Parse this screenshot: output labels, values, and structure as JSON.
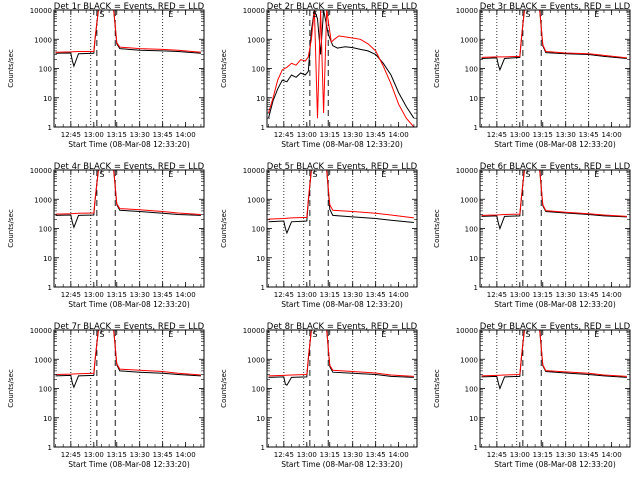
{
  "chart_data": [
    {
      "type": "line",
      "title": "Det 1r BLACK = Events, RED = LLD",
      "xlabel": "Start Time (08-Mar-08 12:33:20)",
      "ylabel": "Counts/sec",
      "yscale": "log",
      "ylim": [
        1,
        10000
      ],
      "xlim": [
        "12:34",
        "14:12"
      ],
      "x_tick_labels": [
        "12:45",
        "13:00",
        "13:15",
        "13:30",
        "13:45",
        "14:00"
      ],
      "y_tick_labels": [
        "1",
        "10",
        "100",
        "1000",
        "10000"
      ],
      "markers": [
        "S",
        "E"
      ],
      "series": [
        {
          "color": "#000000",
          "x": [
            "12:35",
            "12:45",
            "12:46",
            "12:47",
            "12:50",
            "13:00",
            "13:01",
            "13:03",
            "13:13",
            "13:15",
            "13:17",
            "13:30",
            "13:45",
            "13:55",
            "14:10"
          ],
          "y": [
            330,
            340,
            180,
            120,
            320,
            330,
            1200,
            10000,
            10000,
            700,
            480,
            420,
            400,
            380,
            330
          ]
        },
        {
          "color": "#ff0000",
          "x": [
            "12:35",
            "12:45",
            "12:50",
            "13:00",
            "13:01",
            "13:03",
            "13:13",
            "13:15",
            "13:17",
            "13:30",
            "13:45",
            "13:55",
            "14:10"
          ],
          "y": [
            360,
            370,
            380,
            380,
            1300,
            10000,
            10000,
            760,
            540,
            480,
            450,
            420,
            360
          ]
        }
      ]
    },
    {
      "type": "line",
      "title": "Det 2r BLACK = Events, RED = LLD",
      "xlabel": "Start Time (08-Mar-08 12:33:20)",
      "ylabel": "Counts/sec",
      "yscale": "log",
      "ylim": [
        1,
        10000
      ],
      "xlim": [
        "12:34",
        "14:12"
      ],
      "x_tick_labels": [
        "12:45",
        "13:00",
        "13:15",
        "13:30",
        "13:45",
        "14:00"
      ],
      "y_tick_labels": [
        "1",
        "10",
        "100",
        "1000",
        "10000"
      ],
      "markers": [
        "S",
        "E"
      ],
      "series": [
        {
          "color": "#000000",
          "x": [
            "12:35",
            "12:38",
            "12:41",
            "12:44",
            "12:47",
            "12:50",
            "12:53",
            "12:56",
            "12:59",
            "13:01",
            "13:03",
            "13:05",
            "13:07",
            "13:09",
            "13:11",
            "13:14",
            "13:17",
            "13:20",
            "13:25",
            "13:30",
            "13:35",
            "13:40",
            "13:45",
            "13:50",
            "13:55",
            "14:00",
            "14:05",
            "14:10"
          ],
          "y": [
            2,
            8,
            20,
            40,
            35,
            60,
            50,
            70,
            60,
            80,
            2000,
            10000,
            5000,
            300,
            10000,
            1500,
            600,
            500,
            550,
            520,
            450,
            400,
            300,
            150,
            60,
            15,
            5,
            2
          ]
        },
        {
          "color": "#ff0000",
          "x": [
            "12:35",
            "12:38",
            "12:41",
            "12:44",
            "12:47",
            "12:50",
            "12:53",
            "12:56",
            "12:59",
            "13:01",
            "13:03",
            "13:05",
            "13:07",
            "13:09",
            "13:11",
            "13:13",
            "13:16",
            "13:18",
            "13:21",
            "13:25",
            "13:30",
            "13:35",
            "13:40",
            "13:45",
            "13:50",
            "13:55",
            "14:00",
            "14:05",
            "14:10"
          ],
          "y": [
            3,
            10,
            40,
            90,
            110,
            150,
            130,
            200,
            180,
            250,
            1000,
            10000,
            2,
            10000,
            3,
            10000,
            800,
            1000,
            1300,
            1200,
            1100,
            1000,
            700,
            400,
            120,
            30,
            6,
            2,
            1
          ]
        }
      ]
    },
    {
      "type": "line",
      "title": "Det 3r BLACK = Events, RED = LLD",
      "xlabel": "Start Time (08-Mar-08 12:33:20)",
      "ylabel": "Counts/sec",
      "yscale": "log",
      "ylim": [
        1,
        10000
      ],
      "xlim": [
        "12:34",
        "14:12"
      ],
      "x_tick_labels": [
        "12:45",
        "13:00",
        "13:15",
        "13:30",
        "13:45",
        "14:00"
      ],
      "y_tick_labels": [
        "1",
        "10",
        "100",
        "1000",
        "10000"
      ],
      "markers": [
        "S",
        "E"
      ],
      "series": [
        {
          "color": "#000000",
          "x": [
            "12:35",
            "12:45",
            "12:46",
            "12:47",
            "12:50",
            "13:00",
            "13:01",
            "13:03",
            "13:13",
            "13:15",
            "13:17",
            "13:30",
            "13:45",
            "13:55",
            "14:10"
          ],
          "y": [
            220,
            230,
            130,
            90,
            220,
            240,
            900,
            10000,
            10000,
            600,
            350,
            320,
            300,
            260,
            220
          ]
        },
        {
          "color": "#ff0000",
          "x": [
            "12:35",
            "12:45",
            "12:50",
            "13:00",
            "13:01",
            "13:03",
            "13:13",
            "13:15",
            "13:17",
            "13:30",
            "13:45",
            "13:55",
            "14:10"
          ],
          "y": [
            240,
            250,
            250,
            260,
            1000,
            10000,
            10000,
            650,
            380,
            340,
            320,
            280,
            230
          ]
        }
      ]
    },
    {
      "type": "line",
      "title": "Det 4r BLACK = Events, RED = LLD",
      "xlabel": "Start Time (08-Mar-08 12:33:20)",
      "ylabel": "Counts/sec",
      "yscale": "log",
      "ylim": [
        1,
        10000
      ],
      "xlim": [
        "12:34",
        "14:12"
      ],
      "x_tick_labels": [
        "12:45",
        "13:00",
        "13:15",
        "13:30",
        "13:45",
        "14:00"
      ],
      "y_tick_labels": [
        "1",
        "10",
        "100",
        "1000",
        "10000"
      ],
      "markers": [
        "S",
        "E"
      ],
      "series": [
        {
          "color": "#000000",
          "x": [
            "12:35",
            "12:45",
            "12:46",
            "12:47",
            "12:50",
            "13:00",
            "13:01",
            "13:03",
            "13:13",
            "13:15",
            "13:17",
            "13:30",
            "13:45",
            "13:55",
            "14:10"
          ],
          "y": [
            280,
            290,
            160,
            110,
            280,
            290,
            1100,
            10000,
            10000,
            650,
            420,
            380,
            330,
            300,
            280
          ]
        },
        {
          "color": "#ff0000",
          "x": [
            "12:35",
            "12:45",
            "12:50",
            "13:00",
            "13:01",
            "13:03",
            "13:13",
            "13:15",
            "13:17",
            "13:30",
            "13:45",
            "13:55",
            "14:10"
          ],
          "y": [
            310,
            320,
            330,
            340,
            1200,
            10000,
            10000,
            700,
            480,
            440,
            380,
            340,
            300
          ]
        }
      ]
    },
    {
      "type": "line",
      "title": "Det 5r BLACK = Events, RED = LLD",
      "xlabel": "Start Time (08-Mar-08 12:33:20)",
      "ylabel": "Counts/sec",
      "yscale": "log",
      "ylim": [
        1,
        10000
      ],
      "xlim": [
        "12:34",
        "14:12"
      ],
      "x_tick_labels": [
        "12:45",
        "13:00",
        "13:15",
        "13:30",
        "13:45",
        "14:00"
      ],
      "y_tick_labels": [
        "1",
        "10",
        "100",
        "1000",
        "10000"
      ],
      "markers": [
        "S",
        "E"
      ],
      "series": [
        {
          "color": "#000000",
          "x": [
            "12:35",
            "12:45",
            "12:46",
            "12:47",
            "12:50",
            "13:00",
            "13:01",
            "13:03",
            "13:13",
            "13:15",
            "13:17",
            "13:30",
            "13:45",
            "13:55",
            "14:10"
          ],
          "y": [
            170,
            180,
            100,
            70,
            170,
            180,
            800,
            10000,
            10000,
            450,
            280,
            250,
            220,
            190,
            160
          ]
        },
        {
          "color": "#ff0000",
          "x": [
            "12:35",
            "12:45",
            "12:50",
            "13:00",
            "13:01",
            "13:03",
            "13:13",
            "13:15",
            "13:17",
            "13:30",
            "13:45",
            "13:55",
            "14:10"
          ],
          "y": [
            210,
            220,
            230,
            240,
            950,
            10000,
            10000,
            650,
            420,
            380,
            330,
            290,
            230
          ]
        }
      ]
    },
    {
      "type": "line",
      "title": "Det 6r BLACK = Events, RED = LLD",
      "xlabel": "Start Time (08-Mar-08 12:33:20)",
      "ylabel": "Counts/sec",
      "yscale": "log",
      "ylim": [
        1,
        10000
      ],
      "xlim": [
        "12:34",
        "14:12"
      ],
      "x_tick_labels": [
        "12:45",
        "13:00",
        "13:15",
        "13:30",
        "13:45",
        "14:00"
      ],
      "y_tick_labels": [
        "1",
        "10",
        "100",
        "1000",
        "10000"
      ],
      "markers": [
        "S",
        "E"
      ],
      "series": [
        {
          "color": "#000000",
          "x": [
            "12:35",
            "12:45",
            "12:46",
            "12:47",
            "12:50",
            "13:00",
            "13:01",
            "13:03",
            "13:13",
            "13:15",
            "13:17",
            "13:30",
            "13:45",
            "13:55",
            "14:10"
          ],
          "y": [
            260,
            270,
            150,
            100,
            260,
            270,
            1000,
            10000,
            10000,
            600,
            380,
            340,
            300,
            270,
            250
          ]
        },
        {
          "color": "#ff0000",
          "x": [
            "12:35",
            "12:45",
            "12:50",
            "13:00",
            "13:01",
            "13:03",
            "13:13",
            "13:15",
            "13:17",
            "13:30",
            "13:45",
            "13:55",
            "14:10"
          ],
          "y": [
            280,
            290,
            300,
            310,
            1100,
            10000,
            10000,
            650,
            410,
            360,
            320,
            290,
            260
          ]
        }
      ]
    },
    {
      "type": "line",
      "title": "Det 7r BLACK = Events, RED = LLD",
      "xlabel": "Start Time (08-Mar-08 12:33:20)",
      "ylabel": "Counts/sec",
      "yscale": "log",
      "ylim": [
        1,
        10000
      ],
      "xlim": [
        "12:34",
        "14:12"
      ],
      "x_tick_labels": [
        "12:45",
        "13:00",
        "13:15",
        "13:30",
        "13:45",
        "14:00"
      ],
      "y_tick_labels": [
        "1",
        "10",
        "100",
        "1000",
        "10000"
      ],
      "markers": [
        "S",
        "E"
      ],
      "series": [
        {
          "color": "#000000",
          "x": [
            "12:35",
            "12:45",
            "12:46",
            "12:47",
            "12:50",
            "13:00",
            "13:01",
            "13:03",
            "13:13",
            "13:15",
            "13:17",
            "13:30",
            "13:45",
            "13:55",
            "14:10"
          ],
          "y": [
            270,
            280,
            150,
            110,
            270,
            280,
            1100,
            10000,
            10000,
            640,
            400,
            360,
            330,
            300,
            270
          ]
        },
        {
          "color": "#ff0000",
          "x": [
            "12:35",
            "12:45",
            "12:50",
            "13:00",
            "13:01",
            "13:03",
            "13:13",
            "13:15",
            "13:17",
            "13:30",
            "13:45",
            "13:55",
            "14:10"
          ],
          "y": [
            300,
            310,
            320,
            330,
            1200,
            10000,
            10000,
            700,
            460,
            420,
            380,
            330,
            290
          ]
        }
      ]
    },
    {
      "type": "line",
      "title": "Det 8r BLACK = Events, RED = LLD",
      "xlabel": "Start Time (08-Mar-08 12:33:20)",
      "ylabel": "Counts/sec",
      "yscale": "log",
      "ylim": [
        1,
        10000
      ],
      "xlim": [
        "12:34",
        "14:12"
      ],
      "x_tick_labels": [
        "12:45",
        "13:00",
        "13:15",
        "13:30",
        "13:45",
        "14:00"
      ],
      "y_tick_labels": [
        "1",
        "10",
        "100",
        "1000",
        "10000"
      ],
      "markers": [
        "S",
        "E"
      ],
      "series": [
        {
          "color": "#000000",
          "x": [
            "12:35",
            "12:45",
            "12:46",
            "12:47",
            "12:50",
            "13:00",
            "13:01",
            "13:03",
            "13:13",
            "13:15",
            "13:17",
            "13:30",
            "13:45",
            "13:55",
            "14:10"
          ],
          "y": [
            240,
            250,
            140,
            130,
            240,
            250,
            1000,
            10000,
            10000,
            560,
            360,
            330,
            300,
            260,
            240
          ]
        },
        {
          "color": "#ff0000",
          "x": [
            "12:35",
            "12:45",
            "12:50",
            "13:00",
            "13:01",
            "13:03",
            "13:13",
            "13:15",
            "13:17",
            "13:30",
            "13:45",
            "13:55",
            "14:10"
          ],
          "y": [
            270,
            280,
            290,
            300,
            1100,
            10000,
            10000,
            620,
            420,
            380,
            340,
            290,
            260
          ]
        }
      ]
    },
    {
      "type": "line",
      "title": "Det 9r BLACK = Events, RED = LLD",
      "xlabel": "Start Time (08-Mar-08 12:33:20)",
      "ylabel": "Counts/sec",
      "yscale": "log",
      "ylim": [
        1,
        10000
      ],
      "xlim": [
        "12:34",
        "14:12"
      ],
      "x_tick_labels": [
        "12:45",
        "13:00",
        "13:15",
        "13:30",
        "13:45",
        "14:00"
      ],
      "y_tick_labels": [
        "1",
        "10",
        "100",
        "1000",
        "10000"
      ],
      "markers": [
        "S",
        "E"
      ],
      "series": [
        {
          "color": "#000000",
          "x": [
            "12:35",
            "12:45",
            "12:46",
            "12:47",
            "12:50",
            "13:00",
            "13:01",
            "13:03",
            "13:13",
            "13:15",
            "13:17",
            "13:30",
            "13:45",
            "13:55",
            "14:10"
          ],
          "y": [
            250,
            260,
            150,
            100,
            250,
            260,
            1000,
            10000,
            10000,
            600,
            380,
            340,
            300,
            270,
            240
          ]
        },
        {
          "color": "#ff0000",
          "x": [
            "12:35",
            "12:45",
            "12:50",
            "13:00",
            "13:01",
            "13:03",
            "13:13",
            "13:15",
            "13:17",
            "13:30",
            "13:45",
            "13:55",
            "14:10"
          ],
          "y": [
            270,
            280,
            290,
            300,
            1100,
            10000,
            10000,
            640,
            410,
            370,
            330,
            290,
            260
          ]
        }
      ]
    }
  ]
}
